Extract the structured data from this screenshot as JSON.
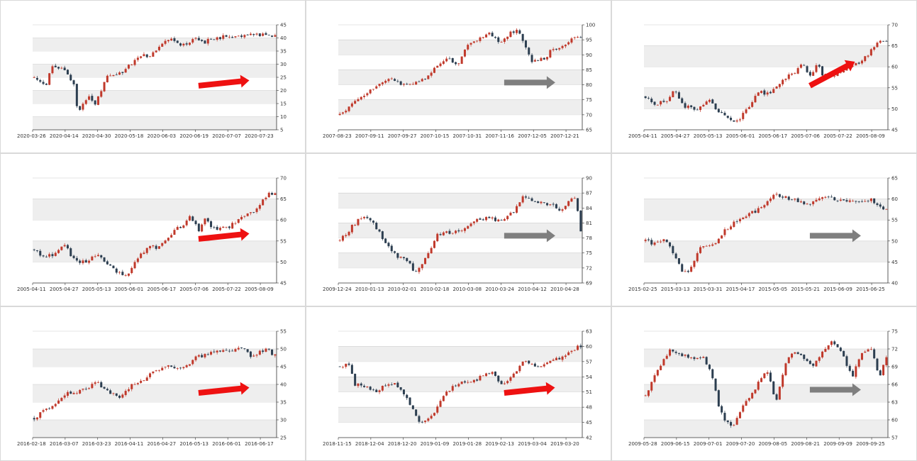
{
  "colors": {
    "bull": "#c0392b",
    "bear": "#2c3e50",
    "band": "#eeeeee",
    "grid": "#cccccc",
    "arrow_up": "#ee1111",
    "arrow_flat": "#7f7f7f"
  },
  "chart_data": [
    {
      "type": "candlestick",
      "x_ticks": [
        "2020-03-26",
        "2020-04-14",
        "2020-04-30",
        "2020-05-18",
        "2020-06-03",
        "2020-06-19",
        "2020-07-07",
        "2020-07-23"
      ],
      "y_ticks": [
        "5",
        "10",
        "15",
        "20",
        "25",
        "30",
        "35",
        "40",
        "45"
      ],
      "ylim": [
        5,
        45
      ],
      "path": [
        [
          0,
          25.0
        ],
        [
          5,
          22.0
        ],
        [
          7,
          30.0
        ],
        [
          13,
          27.0
        ],
        [
          16,
          21.5
        ],
        [
          17,
          12.0
        ],
        [
          22,
          17.5
        ],
        [
          24,
          14.5
        ],
        [
          29,
          25.5
        ],
        [
          32,
          26.0
        ],
        [
          35,
          27.0
        ],
        [
          38,
          30.0
        ],
        [
          41,
          33.0
        ],
        [
          44,
          33.2
        ],
        [
          47,
          34.0
        ],
        [
          52,
          38.5
        ],
        [
          55,
          39.5
        ],
        [
          58,
          37.5
        ],
        [
          60,
          37.8
        ],
        [
          64,
          39.5
        ],
        [
          66,
          39.7
        ],
        [
          67,
          38.3
        ],
        [
          69,
          39.6
        ],
        [
          75,
          40.5
        ],
        [
          80,
          40.8
        ],
        [
          84,
          41.5
        ],
        [
          90,
          41.0
        ],
        [
          95,
          40.5
        ]
      ],
      "arrow": "up"
    },
    {
      "type": "candlestick",
      "x_ticks": [
        "2007-08-23",
        "2007-09-11",
        "2007-09-27",
        "2007-10-15",
        "2007-10-31",
        "2007-11-16",
        "2007-12-05",
        "2007-12-21"
      ],
      "y_ticks": [
        "65",
        "70",
        "75",
        "80",
        "85",
        "90",
        "95",
        "100"
      ],
      "ylim": [
        65,
        100
      ],
      "path": [
        [
          0,
          70.0
        ],
        [
          15,
          80.0
        ],
        [
          20,
          82.0
        ],
        [
          24,
          80.5
        ],
        [
          27,
          80.5
        ],
        [
          33,
          81.0
        ],
        [
          39,
          86.0
        ],
        [
          44,
          88.5
        ],
        [
          48,
          86.5
        ],
        [
          52,
          93.0
        ],
        [
          57,
          95.5
        ],
        [
          61,
          97.0
        ],
        [
          65,
          94.0
        ],
        [
          69,
          97.0
        ],
        [
          72,
          98.0
        ],
        [
          74,
          95.5
        ],
        [
          78,
          88.0
        ],
        [
          84,
          88.5
        ],
        [
          86,
          92.5
        ],
        [
          90,
          92.0
        ],
        [
          92,
          93.5
        ],
        [
          95,
          96.5
        ],
        [
          98,
          96.0
        ]
      ],
      "arrow": "flat"
    },
    {
      "type": "candlestick",
      "x_ticks": [
        "2005-04-11",
        "2005-04-27",
        "2005-05-13",
        "2005-06-01",
        "2005-06-17",
        "2005-07-06",
        "2005-07-22",
        "2005-08-09"
      ],
      "y_ticks": [
        "45",
        "50",
        "55",
        "60",
        "65",
        "70"
      ],
      "ylim": [
        45,
        70
      ],
      "path": [
        [
          0,
          53.0
        ],
        [
          4,
          51.0
        ],
        [
          8,
          52.0
        ],
        [
          11,
          54.5
        ],
        [
          15,
          50.5
        ],
        [
          19,
          50.0
        ],
        [
          24,
          52.0
        ],
        [
          27,
          49.5
        ],
        [
          32,
          47.5
        ],
        [
          35,
          47.0
        ],
        [
          39,
          50.5
        ],
        [
          43,
          54.0
        ],
        [
          46,
          53.5
        ],
        [
          50,
          55.5
        ],
        [
          54,
          58.0
        ],
        [
          57,
          59.0
        ],
        [
          59,
          61.0
        ],
        [
          62,
          57.5
        ],
        [
          65,
          60.5
        ],
        [
          67,
          58.0
        ],
        [
          71,
          58.0
        ],
        [
          74,
          58.5
        ],
        [
          78,
          60.5
        ],
        [
          82,
          61.5
        ],
        [
          86,
          64.5
        ],
        [
          89,
          66.5
        ],
        [
          91,
          66.0
        ]
      ],
      "arrow": "up"
    },
    {
      "type": "candlestick",
      "x_ticks": [
        "2005-04-11",
        "2005-04-27",
        "2005-05-13",
        "2005-06-01",
        "2005-06-17",
        "2005-07-06",
        "2005-07-22",
        "2005-08-09"
      ],
      "y_ticks": [
        "45",
        "50",
        "55",
        "60",
        "65",
        "70"
      ],
      "ylim": [
        45,
        70
      ],
      "path": [
        [
          0,
          53.0
        ],
        [
          4,
          51.0
        ],
        [
          8,
          52.0
        ],
        [
          11,
          54.5
        ],
        [
          15,
          50.5
        ],
        [
          19,
          50.0
        ],
        [
          24,
          52.0
        ],
        [
          27,
          49.5
        ],
        [
          32,
          47.5
        ],
        [
          35,
          47.0
        ],
        [
          39,
          50.5
        ],
        [
          43,
          54.0
        ],
        [
          46,
          53.5
        ],
        [
          50,
          55.5
        ],
        [
          54,
          58.0
        ],
        [
          57,
          59.0
        ],
        [
          59,
          61.0
        ],
        [
          62,
          57.5
        ],
        [
          65,
          60.5
        ],
        [
          67,
          58.0
        ],
        [
          71,
          58.0
        ],
        [
          74,
          58.5
        ],
        [
          78,
          60.5
        ],
        [
          82,
          61.5
        ],
        [
          86,
          64.5
        ],
        [
          89,
          66.5
        ],
        [
          91,
          66.0
        ]
      ],
      "arrow": "up"
    },
    {
      "type": "candlestick",
      "x_ticks": [
        "2009-12-24",
        "2010-01-13",
        "2010-02-01",
        "2010-02-18",
        "2010-03-08",
        "2010-03-24",
        "2010-04-12",
        "2010-04-28"
      ],
      "y_ticks": [
        "69",
        "72",
        "75",
        "78",
        "81",
        "84",
        "87",
        "90"
      ],
      "ylim": [
        69,
        90
      ],
      "path": [
        [
          0,
          77.5
        ],
        [
          6,
          81.0
        ],
        [
          9,
          82.5
        ],
        [
          12,
          81.5
        ],
        [
          15,
          79.5
        ],
        [
          18,
          77.0
        ],
        [
          22,
          74.5
        ],
        [
          26,
          73.5
        ],
        [
          29,
          71.5
        ],
        [
          31,
          71.8
        ],
        [
          35,
          75.0
        ],
        [
          38,
          78.5
        ],
        [
          41,
          79.5
        ],
        [
          44,
          79.0
        ],
        [
          47,
          79.5
        ],
        [
          52,
          81.5
        ],
        [
          57,
          82.0
        ],
        [
          62,
          81.5
        ],
        [
          65,
          82.0
        ],
        [
          69,
          84.0
        ],
        [
          72,
          86.5
        ],
        [
          75,
          85.5
        ],
        [
          79,
          85.0
        ],
        [
          83,
          84.5
        ],
        [
          86,
          83.5
        ],
        [
          90,
          85.5
        ],
        [
          92,
          86.5
        ],
        [
          94,
          79.5
        ]
      ],
      "arrow": "flat"
    },
    {
      "type": "candlestick",
      "x_ticks": [
        "2015-02-25",
        "2015-03-13",
        "2015-03-31",
        "2015-04-17",
        "2015-05-05",
        "2015-05-21",
        "2015-06-09",
        "2015-06-25"
      ],
      "y_ticks": [
        "40",
        "45",
        "50",
        "55",
        "60",
        "65"
      ],
      "ylim": [
        40,
        65
      ],
      "path": [
        [
          0,
          50.0
        ],
        [
          3,
          49.5
        ],
        [
          7,
          50.5
        ],
        [
          10,
          48.5
        ],
        [
          14,
          43.0
        ],
        [
          17,
          42.5
        ],
        [
          21,
          48.5
        ],
        [
          27,
          49.5
        ],
        [
          31,
          52.5
        ],
        [
          35,
          54.5
        ],
        [
          39,
          56.0
        ],
        [
          44,
          57.5
        ],
        [
          49,
          60.5
        ],
        [
          52,
          61.0
        ],
        [
          56,
          60.0
        ],
        [
          60,
          59.5
        ],
        [
          64,
          58.5
        ],
        [
          69,
          60.5
        ],
        [
          74,
          60.0
        ],
        [
          79,
          59.5
        ],
        [
          84,
          59.0
        ],
        [
          88,
          60.0
        ],
        [
          91,
          58.5
        ],
        [
          94,
          57.5
        ]
      ],
      "arrow": "flat"
    },
    {
      "type": "candlestick",
      "x_ticks": [
        "2016-02-18",
        "2016-03-07",
        "2016-03-23",
        "2016-04-11",
        "2016-04-27",
        "2016-05-13",
        "2016-06-01",
        "2016-06-17"
      ],
      "y_ticks": [
        "25",
        "30",
        "35",
        "40",
        "45",
        "50",
        "55"
      ],
      "ylim": [
        25,
        55
      ],
      "path": [
        [
          0,
          30.5
        ],
        [
          6,
          33.5
        ],
        [
          13,
          37.5
        ],
        [
          18,
          38.0
        ],
        [
          25,
          40.5
        ],
        [
          30,
          37.5
        ],
        [
          34,
          36.0
        ],
        [
          38,
          39.5
        ],
        [
          43,
          41.5
        ],
        [
          48,
          44.0
        ],
        [
          53,
          45.0
        ],
        [
          56,
          44.5
        ],
        [
          60,
          45.5
        ],
        [
          64,
          47.5
        ],
        [
          68,
          48.5
        ],
        [
          73,
          49.5
        ],
        [
          78,
          49.0
        ],
        [
          82,
          50.5
        ],
        [
          86,
          47.5
        ],
        [
          89,
          49.0
        ],
        [
          92,
          50.0
        ],
        [
          95,
          48.0
        ]
      ],
      "arrow": "up"
    },
    {
      "type": "candlestick",
      "x_ticks": [
        "2018-11-15",
        "2018-12-04",
        "2018-12-20",
        "2019-01-09",
        "2019-01-28",
        "2019-02-13",
        "2019-03-04",
        "2019-03-20"
      ],
      "y_ticks": [
        "42",
        "45",
        "48",
        "51",
        "54",
        "57",
        "60",
        "63"
      ],
      "ylim": [
        42,
        63
      ],
      "path": [
        [
          0,
          56.0
        ],
        [
          4,
          56.5
        ],
        [
          6,
          52.5
        ],
        [
          10,
          52.0
        ],
        [
          14,
          51.0
        ],
        [
          18,
          52.5
        ],
        [
          22,
          52.5
        ],
        [
          25,
          51.0
        ],
        [
          28,
          48.0
        ],
        [
          31,
          45.5
        ],
        [
          34,
          45.0
        ],
        [
          37,
          47.0
        ],
        [
          40,
          49.5
        ],
        [
          44,
          52.0
        ],
        [
          48,
          53.0
        ],
        [
          52,
          53.0
        ],
        [
          56,
          54.0
        ],
        [
          60,
          55.0
        ],
        [
          64,
          52.5
        ],
        [
          68,
          54.0
        ],
        [
          72,
          57.0
        ],
        [
          76,
          56.5
        ],
        [
          80,
          56.0
        ],
        [
          85,
          57.5
        ],
        [
          88,
          58.0
        ],
        [
          92,
          59.5
        ],
        [
          95,
          60.0
        ]
      ],
      "arrow": "up"
    },
    {
      "type": "candlestick",
      "x_ticks": [
        "2009-05-28",
        "2009-06-15",
        "2009-07-01",
        "2009-07-20",
        "2009-08-05",
        "2009-08-21",
        "2009-09-09",
        "2009-09-25"
      ],
      "y_ticks": [
        "57",
        "60",
        "63",
        "66",
        "69",
        "72",
        "75"
      ],
      "ylim": [
        57,
        75
      ],
      "path": [
        [
          0,
          64.0
        ],
        [
          5,
          68.5
        ],
        [
          10,
          72.0
        ],
        [
          14,
          71.0
        ],
        [
          19,
          70.5
        ],
        [
          24,
          70.5
        ],
        [
          27,
          67.5
        ],
        [
          30,
          62.0
        ],
        [
          33,
          59.5
        ],
        [
          36,
          59.0
        ],
        [
          40,
          62.5
        ],
        [
          44,
          65.0
        ],
        [
          48,
          67.5
        ],
        [
          50,
          68.0
        ],
        [
          53,
          63.0
        ],
        [
          57,
          69.5
        ],
        [
          60,
          71.5
        ],
        [
          64,
          70.5
        ],
        [
          68,
          69.0
        ],
        [
          72,
          71.5
        ],
        [
          76,
          73.5
        ],
        [
          80,
          71.5
        ],
        [
          84,
          67.0
        ],
        [
          88,
          71.5
        ],
        [
          92,
          72.0
        ],
        [
          95,
          67.0
        ],
        [
          98,
          70.5
        ]
      ],
      "arrow": "flat"
    }
  ]
}
